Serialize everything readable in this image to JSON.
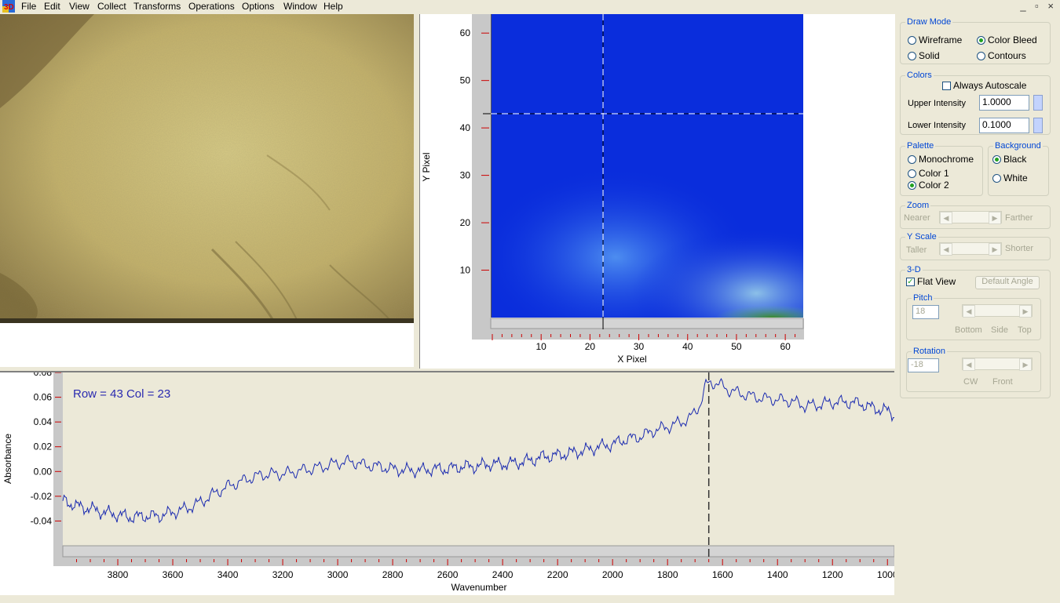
{
  "menubar": {
    "items": [
      "File",
      "Edit",
      "View",
      "Collect",
      "Transforms",
      "Operations",
      "Options",
      "Window",
      "Help"
    ],
    "window_controls": "_ ▫ ×"
  },
  "heatmap": {
    "xlabel": "X Pixel",
    "ylabel": "Y Pixel",
    "x_ticks": [
      "10",
      "20",
      "30",
      "40",
      "50",
      "60"
    ],
    "y_ticks": [
      "60",
      "50",
      "40",
      "30",
      "20",
      "10"
    ],
    "crosshair": {
      "x": 23,
      "y": 43
    }
  },
  "spectrum": {
    "annotation": "Row = 43 Col = 23",
    "ylabel": "Absorbance",
    "xlabel": "Wavenumber",
    "y_ticks": [
      "0.08",
      "0.06",
      "0.04",
      "0.02",
      "0.00",
      "-0.02",
      "-0.04"
    ],
    "x_ticks": [
      "3800",
      "3600",
      "3400",
      "3200",
      "3000",
      "2800",
      "2600",
      "2400",
      "2200",
      "2000",
      "1800",
      "1600",
      "1400",
      "1200",
      "1000"
    ],
    "cursor_wavenumber": 1650
  },
  "chart_data": {
    "type": "line",
    "xlabel": "Wavenumber",
    "ylabel": "Absorbance",
    "xlim": [
      4000,
      975
    ],
    "ylim": [
      -0.06,
      0.08
    ],
    "x": [
      3990,
      3950,
      3900,
      3850,
      3800,
      3750,
      3700,
      3650,
      3600,
      3550,
      3500,
      3450,
      3400,
      3350,
      3300,
      3250,
      3200,
      3150,
      3100,
      3050,
      3000,
      2950,
      2900,
      2850,
      2800,
      2750,
      2700,
      2650,
      2600,
      2550,
      2500,
      2450,
      2400,
      2350,
      2300,
      2250,
      2200,
      2150,
      2100,
      2050,
      2000,
      1950,
      1900,
      1850,
      1800,
      1750,
      1720,
      1700,
      1680,
      1660,
      1640,
      1620,
      1600,
      1580,
      1550,
      1500,
      1450,
      1400,
      1350,
      1300,
      1250,
      1200,
      1150,
      1100,
      1050,
      1000,
      975
    ],
    "y": [
      -0.024,
      -0.028,
      -0.03,
      -0.033,
      -0.035,
      -0.037,
      -0.036,
      -0.036,
      -0.033,
      -0.03,
      -0.025,
      -0.018,
      -0.012,
      -0.008,
      -0.004,
      -0.002,
      -0.002,
      0.0,
      0.002,
      0.004,
      0.007,
      0.008,
      0.005,
      0.004,
      0.002,
      0.001,
      0.001,
      0.002,
      0.002,
      0.004,
      0.004,
      0.006,
      0.006,
      0.007,
      0.009,
      0.012,
      0.013,
      0.015,
      0.017,
      0.02,
      0.022,
      0.026,
      0.028,
      0.033,
      0.036,
      0.04,
      0.043,
      0.048,
      0.055,
      0.07,
      0.072,
      0.071,
      0.069,
      0.066,
      0.064,
      0.061,
      0.059,
      0.058,
      0.057,
      0.053,
      0.054,
      0.056,
      0.056,
      0.055,
      0.051,
      0.049,
      0.046
    ]
  },
  "side": {
    "draw_mode": {
      "legend": "Draw Mode",
      "options": [
        "Wireframe",
        "Color Bleed",
        "Solid",
        "Contours"
      ],
      "selected": "Color Bleed"
    },
    "colors": {
      "legend": "Colors",
      "always_autoscale": "Always Autoscale",
      "upper_label": "Upper Intensity",
      "upper_value": "1.0000",
      "lower_label": "Lower Intensity",
      "lower_value": "0.1000"
    },
    "palette": {
      "legend": "Palette",
      "options": [
        "Monochrome",
        "Color 1",
        "Color 2"
      ],
      "selected": "Color 2"
    },
    "background": {
      "legend": "Background",
      "options": [
        "Black",
        "White"
      ],
      "selected": "Black"
    },
    "zoom": {
      "legend": "Zoom",
      "left": "Nearer",
      "right": "Farther"
    },
    "yscale": {
      "legend": "Y Scale",
      "left": "Taller",
      "right": "Shorter"
    },
    "three_d": {
      "legend": "3-D",
      "flat_view": "Flat View",
      "default_angle": "Default Angle"
    },
    "pitch": {
      "legend": "Pitch",
      "value": "18",
      "labels": [
        "Bottom",
        "Side",
        "Top"
      ]
    },
    "rotation": {
      "legend": "Rotation",
      "value": "-18",
      "labels": [
        "CW",
        "Front"
      ]
    }
  }
}
